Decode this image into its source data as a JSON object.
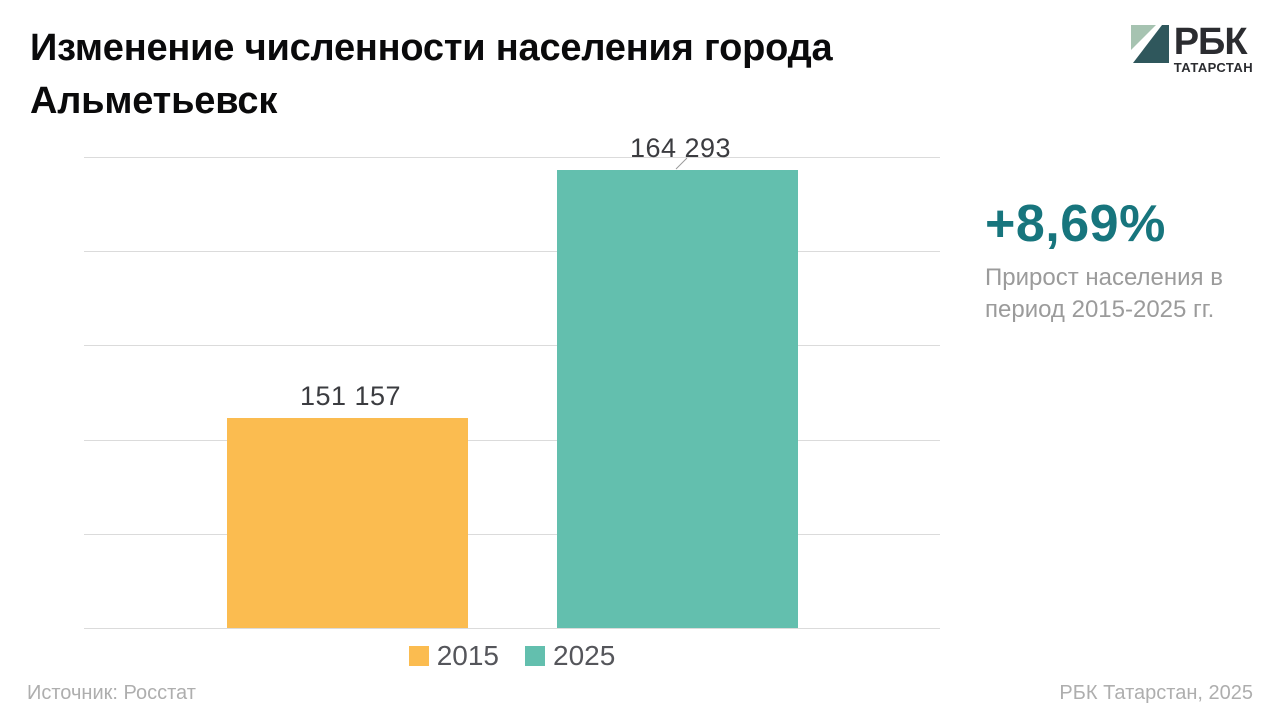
{
  "header": {
    "title": "Изменение численности населения города Альметьевск",
    "logo": {
      "brand": "РБК",
      "region": "ТАТАРСТАН",
      "icon": "rbc-diagonal-square-icon",
      "icon_light_color": "#a6c3b1",
      "icon_dark_color": "#2f575c"
    }
  },
  "chart_data": {
    "type": "bar",
    "title": "Изменение численности населения города Альметьевск",
    "categories": [
      "2015",
      "2025"
    ],
    "values": [
      151157,
      164293
    ],
    "value_labels": [
      "151 157",
      "164 293"
    ],
    "colors": [
      "#fbbc50",
      "#63bfae"
    ],
    "ylim": [
      140000,
      165000
    ],
    "gridline_step": 5000,
    "grid": "horizontal",
    "y_tick_labels_visible": false,
    "legend_position": "bottom",
    "legend": [
      "2015",
      "2025"
    ],
    "leader_on_index": 1
  },
  "stat": {
    "value": "+8,69%",
    "caption": "Прирост населения в период 2015-2025 гг.",
    "color": "#17757d"
  },
  "footer": {
    "source": "Источник: Росстат",
    "credit": "РБК Татарстан, 2025"
  }
}
